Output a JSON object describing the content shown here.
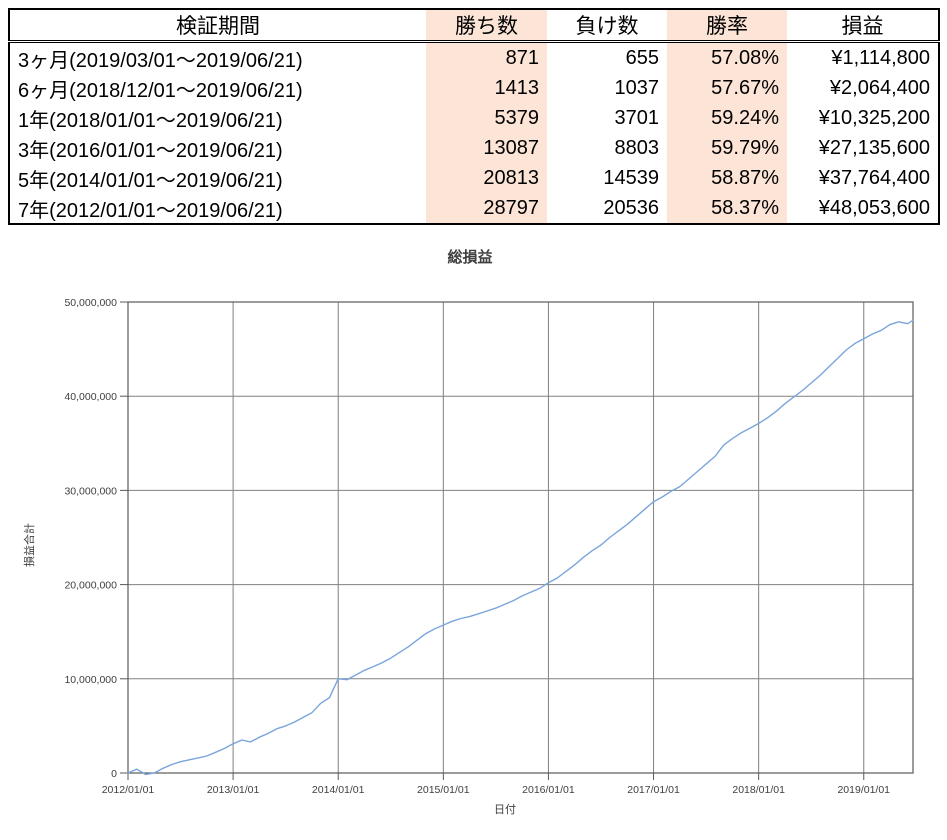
{
  "table": {
    "headers": [
      "検証期間",
      "勝ち数",
      "負け数",
      "勝率",
      "損益"
    ],
    "highlight_color": "#fce4d6",
    "rows": [
      {
        "period": "3ヶ月(2019/03/01～2019/06/21)",
        "wins": "871",
        "losses": "655",
        "win_rate": "57.08%",
        "profit": "¥1,114,800"
      },
      {
        "period": "6ヶ月(2018/12/01～2019/06/21)",
        "wins": "1413",
        "losses": "1037",
        "win_rate": "57.67%",
        "profit": "¥2,064,400"
      },
      {
        "period": "1年(2018/01/01～2019/06/21)",
        "wins": "5379",
        "losses": "3701",
        "win_rate": "59.24%",
        "profit": "¥10,325,200"
      },
      {
        "period": "3年(2016/01/01～2019/06/21)",
        "wins": "13087",
        "losses": "8803",
        "win_rate": "59.79%",
        "profit": "¥27,135,600"
      },
      {
        "period": "5年(2014/01/01～2019/06/21)",
        "wins": "20813",
        "losses": "14539",
        "win_rate": "58.87%",
        "profit": "¥37,764,400"
      },
      {
        "period": "7年(2012/01/01～2019/06/21)",
        "wins": "28797",
        "losses": "20536",
        "win_rate": "58.37%",
        "profit": "¥48,053,600"
      }
    ]
  },
  "chart_data": {
    "type": "line",
    "title": "総損益",
    "xlabel": "日付",
    "ylabel": "損益合計",
    "grid": true,
    "legend": "none",
    "line_color": "#7aa5dc",
    "grid_color": "#808080",
    "axis_color": "#595959",
    "text_color": "#404040",
    "ylim": [
      0,
      50000000
    ],
    "xlim_years": [
      2012.0,
      2019.4685
    ],
    "y_ticks": [
      {
        "value": 0,
        "label": "0"
      },
      {
        "value": 10000000,
        "label": "10,000,000"
      },
      {
        "value": 20000000,
        "label": "20,000,000"
      },
      {
        "value": 30000000,
        "label": "30,000,000"
      },
      {
        "value": 40000000,
        "label": "40,000,000"
      },
      {
        "value": 50000000,
        "label": "50,000,000"
      }
    ],
    "x_ticks": [
      {
        "year": 2012,
        "label": "2012/01/01"
      },
      {
        "year": 2013,
        "label": "2013/01/01"
      },
      {
        "year": 2014,
        "label": "2014/01/01"
      },
      {
        "year": 2015,
        "label": "2015/01/01"
      },
      {
        "year": 2016,
        "label": "2016/01/01"
      },
      {
        "year": 2017,
        "label": "2017/01/01"
      },
      {
        "year": 2018,
        "label": "2018/01/01"
      },
      {
        "year": 2019,
        "label": "2019/01/01"
      }
    ],
    "x_start_year": 2012,
    "x_step": "monthly",
    "unit": "million_yen",
    "monthly_values_million_yen": [
      0.0,
      0.4,
      -0.15,
      0.0,
      0.5,
      0.9,
      1.2,
      1.4,
      1.6,
      1.8,
      2.2,
      2.6,
      3.1,
      3.5,
      3.3,
      3.8,
      4.2,
      4.7,
      5.0,
      5.4,
      5.9,
      6.4,
      7.4,
      8.0,
      10.0,
      9.9,
      10.4,
      10.9,
      11.3,
      11.7,
      12.2,
      12.8,
      13.4,
      14.1,
      14.8,
      15.3,
      15.7,
      16.1,
      16.4,
      16.6,
      16.9,
      17.2,
      17.5,
      17.9,
      18.3,
      18.8,
      19.2,
      19.6,
      20.2,
      20.7,
      21.4,
      22.1,
      22.9,
      23.6,
      24.2,
      25.0,
      25.7,
      26.4,
      27.2,
      28.0,
      28.8,
      29.3,
      29.9,
      30.4,
      31.2,
      32.0,
      32.8,
      33.6,
      34.8,
      35.5,
      36.1,
      36.6,
      37.1,
      37.7,
      38.4,
      39.2,
      39.9,
      40.6,
      41.4,
      42.2,
      43.1,
      44.0,
      44.9,
      45.6,
      46.1,
      46.6,
      47.0,
      47.6,
      47.9,
      47.7
    ],
    "final_point": {
      "x_year": 2019.4685,
      "value_million_yen": 48.0536,
      "date": "2019/06/21"
    }
  }
}
